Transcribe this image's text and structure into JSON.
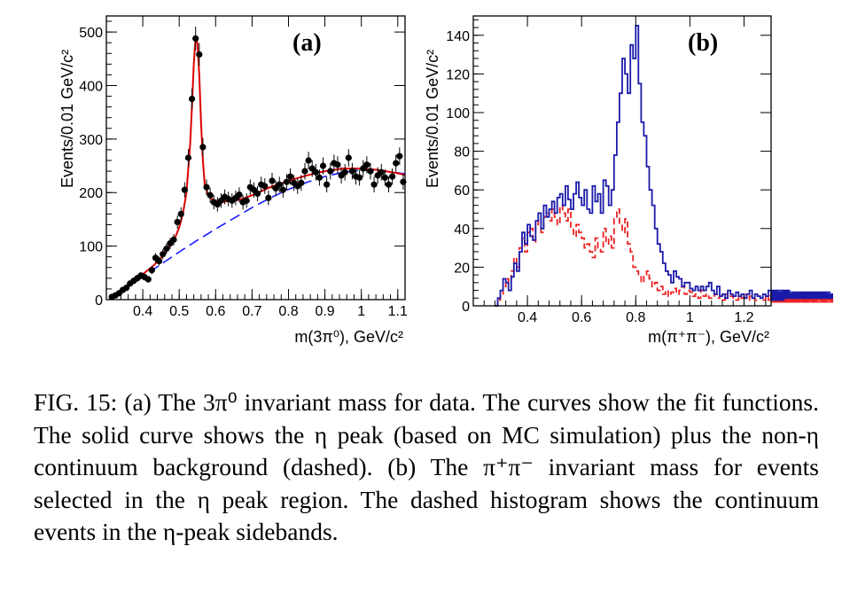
{
  "chart_data": [
    {
      "type": "scatter",
      "panel_label": "(a)",
      "ylabel": "Events/0.01 GeV/c²",
      "xlabel": "m(3π⁰), GeV/c²",
      "xlim": [
        0.3,
        1.12
      ],
      "ylim": [
        0,
        530
      ],
      "x_ticks": [
        "0.4",
        "0.5",
        "0.6",
        "0.7",
        "0.8",
        "0.9",
        "1",
        "1.1"
      ],
      "y_ticks": [
        "0",
        "100",
        "200",
        "300",
        "400",
        "500"
      ],
      "colors": {
        "data": "#000000",
        "fit": "#dd0000",
        "background": "#1a1aff"
      },
      "series": [
        {
          "style": "points-with-errors",
          "x": [
            0.315,
            0.325,
            0.335,
            0.345,
            0.355,
            0.365,
            0.375,
            0.385,
            0.395,
            0.405,
            0.415,
            0.425,
            0.435,
            0.445,
            0.455,
            0.465,
            0.475,
            0.485,
            0.495,
            0.505,
            0.515,
            0.525,
            0.535,
            0.545,
            0.555,
            0.565,
            0.575,
            0.585,
            0.595,
            0.605,
            0.615,
            0.625,
            0.635,
            0.645,
            0.655,
            0.665,
            0.675,
            0.685,
            0.695,
            0.705,
            0.715,
            0.725,
            0.735,
            0.745,
            0.755,
            0.765,
            0.775,
            0.785,
            0.795,
            0.805,
            0.815,
            0.825,
            0.835,
            0.845,
            0.855,
            0.865,
            0.875,
            0.885,
            0.895,
            0.905,
            0.915,
            0.925,
            0.935,
            0.945,
            0.955,
            0.965,
            0.975,
            0.985,
            0.995,
            1.005,
            1.015,
            1.025,
            1.035,
            1.045,
            1.055,
            1.065,
            1.075,
            1.085,
            1.095,
            1.105,
            1.115
          ],
          "y": [
            5,
            8,
            12,
            18,
            22,
            30,
            35,
            40,
            45,
            42,
            38,
            55,
            78,
            72,
            85,
            95,
            105,
            112,
            145,
            160,
            205,
            265,
            375,
            488,
            458,
            285,
            210,
            195,
            182,
            178,
            185,
            192,
            188,
            185,
            190,
            196,
            182,
            185,
            210,
            205,
            198,
            215,
            212,
            190,
            222,
            208,
            215,
            205,
            220,
            230,
            218,
            212,
            218,
            240,
            260,
            245,
            238,
            228,
            250,
            215,
            240,
            255,
            252,
            232,
            238,
            265,
            240,
            230,
            228,
            245,
            252,
            240,
            215,
            232,
            238,
            228,
            215,
            230,
            255,
            268,
            220
          ]
        },
        {
          "name": "fit",
          "style": "solid-line",
          "x": [
            0.31,
            0.33,
            0.35,
            0.37,
            0.39,
            0.41,
            0.43,
            0.45,
            0.47,
            0.49,
            0.5,
            0.51,
            0.52,
            0.53,
            0.535,
            0.54,
            0.545,
            0.55,
            0.555,
            0.56,
            0.565,
            0.57,
            0.58,
            0.59,
            0.6,
            0.62,
            0.64,
            0.66,
            0.68,
            0.7,
            0.75,
            0.8,
            0.85,
            0.9,
            0.95,
            1.0,
            1.05,
            1.1,
            1.12
          ],
          "y": [
            2,
            12,
            22,
            32,
            42,
            53,
            64,
            78,
            95,
            118,
            135,
            160,
            200,
            290,
            360,
            440,
            490,
            480,
            420,
            330,
            260,
            215,
            195,
            188,
            185,
            183,
            184,
            186,
            190,
            195,
            210,
            222,
            232,
            240,
            245,
            245,
            242,
            236,
            233
          ]
        },
        {
          "name": "background",
          "style": "dashed-line",
          "x": [
            0.31,
            0.35,
            0.4,
            0.45,
            0.5,
            0.55,
            0.6,
            0.65,
            0.7,
            0.75,
            0.8,
            0.85,
            0.9,
            0.95,
            1.0,
            1.05,
            1.1,
            1.12
          ],
          "y": [
            2,
            20,
            43,
            66,
            89,
            111,
            132,
            152,
            172,
            190,
            206,
            219,
            230,
            238,
            242,
            241,
            237,
            235
          ]
        }
      ]
    },
    {
      "type": "line",
      "panel_label": "(b)",
      "ylabel": "Events/0.01 GeV/c²",
      "xlabel": "m(π⁺π⁻), GeV/c²",
      "xlim": [
        0.2,
        1.3
      ],
      "ylim": [
        0,
        150
      ],
      "x_ticks": [
        "0.4",
        "0.6",
        "0.8",
        "1",
        "1.2"
      ],
      "y_ticks": [
        "0",
        "20",
        "40",
        "60",
        "80",
        "100",
        "120",
        "140"
      ],
      "bin_width": 0.01,
      "bin_start": 0.28,
      "colors": {
        "signal": "#1a1aaa",
        "sidebands": "#ee2222"
      },
      "series": [
        {
          "style": "solid-histogram",
          "y": [
            0,
            4,
            8,
            14,
            12,
            8,
            15,
            22,
            18,
            28,
            38,
            32,
            42,
            36,
            34,
            44,
            48,
            40,
            52,
            46,
            50,
            54,
            48,
            56,
            58,
            52,
            62,
            55,
            50,
            58,
            64,
            56,
            52,
            60,
            50,
            48,
            62,
            54,
            58,
            48,
            65,
            62,
            52,
            60,
            78,
            95,
            110,
            128,
            120,
            110,
            135,
            128,
            145,
            115,
            95,
            88,
            72,
            60,
            52,
            40,
            32,
            28,
            22,
            18,
            16,
            12,
            18,
            15,
            14,
            10,
            12,
            12,
            9,
            8,
            10,
            8,
            10,
            8,
            10,
            12,
            8,
            6,
            10,
            5,
            6,
            4,
            8,
            6,
            5,
            7,
            5,
            6,
            4,
            6,
            8,
            4,
            6,
            5,
            4,
            6,
            5,
            8,
            4,
            6,
            5,
            7,
            4,
            3,
            6,
            8,
            5,
            4,
            6,
            5,
            4,
            5,
            7,
            4,
            5,
            6,
            4,
            6,
            4,
            5,
            7,
            4,
            6,
            5,
            6,
            4,
            5
          ]
        },
        {
          "style": "dashed-histogram",
          "y": [
            0,
            3,
            6,
            10,
            14,
            12,
            18,
            25,
            20,
            30,
            35,
            28,
            38,
            40,
            33,
            42,
            45,
            38,
            46,
            48,
            44,
            50,
            46,
            42,
            52,
            48,
            44,
            50,
            40,
            36,
            42,
            38,
            35,
            30,
            32,
            28,
            25,
            35,
            30,
            28,
            40,
            32,
            36,
            30,
            45,
            50,
            42,
            38,
            45,
            32,
            28,
            20,
            18,
            15,
            12,
            16,
            18,
            14,
            10,
            12,
            8,
            10,
            6,
            8,
            5,
            7,
            9,
            6,
            8,
            10,
            6,
            8,
            7,
            5,
            6,
            4,
            8,
            5,
            6,
            4,
            5,
            6,
            4,
            5,
            3,
            6,
            4,
            5,
            4,
            3,
            5,
            4,
            6,
            3,
            5,
            4,
            3,
            5,
            4,
            3,
            5,
            3,
            4,
            5,
            3,
            4,
            2,
            4,
            5,
            3,
            4,
            2,
            3,
            4,
            5,
            3,
            4,
            2,
            3,
            4,
            5,
            3,
            4,
            3,
            4,
            2,
            4,
            5,
            3,
            4,
            3,
            2,
            4,
            3
          ]
        }
      ]
    }
  ],
  "caption": {
    "label": "FIG. 15:",
    "text": "(a) The 3π⁰ invariant mass for data. The curves show the fit functions. The solid curve shows the η peak (based on MC simulation) plus the non-η continuum background (dashed). (b) The π⁺π⁻ invariant mass for events selected in the η peak region. The dashed histogram shows the continuum events in the η-peak sidebands."
  }
}
